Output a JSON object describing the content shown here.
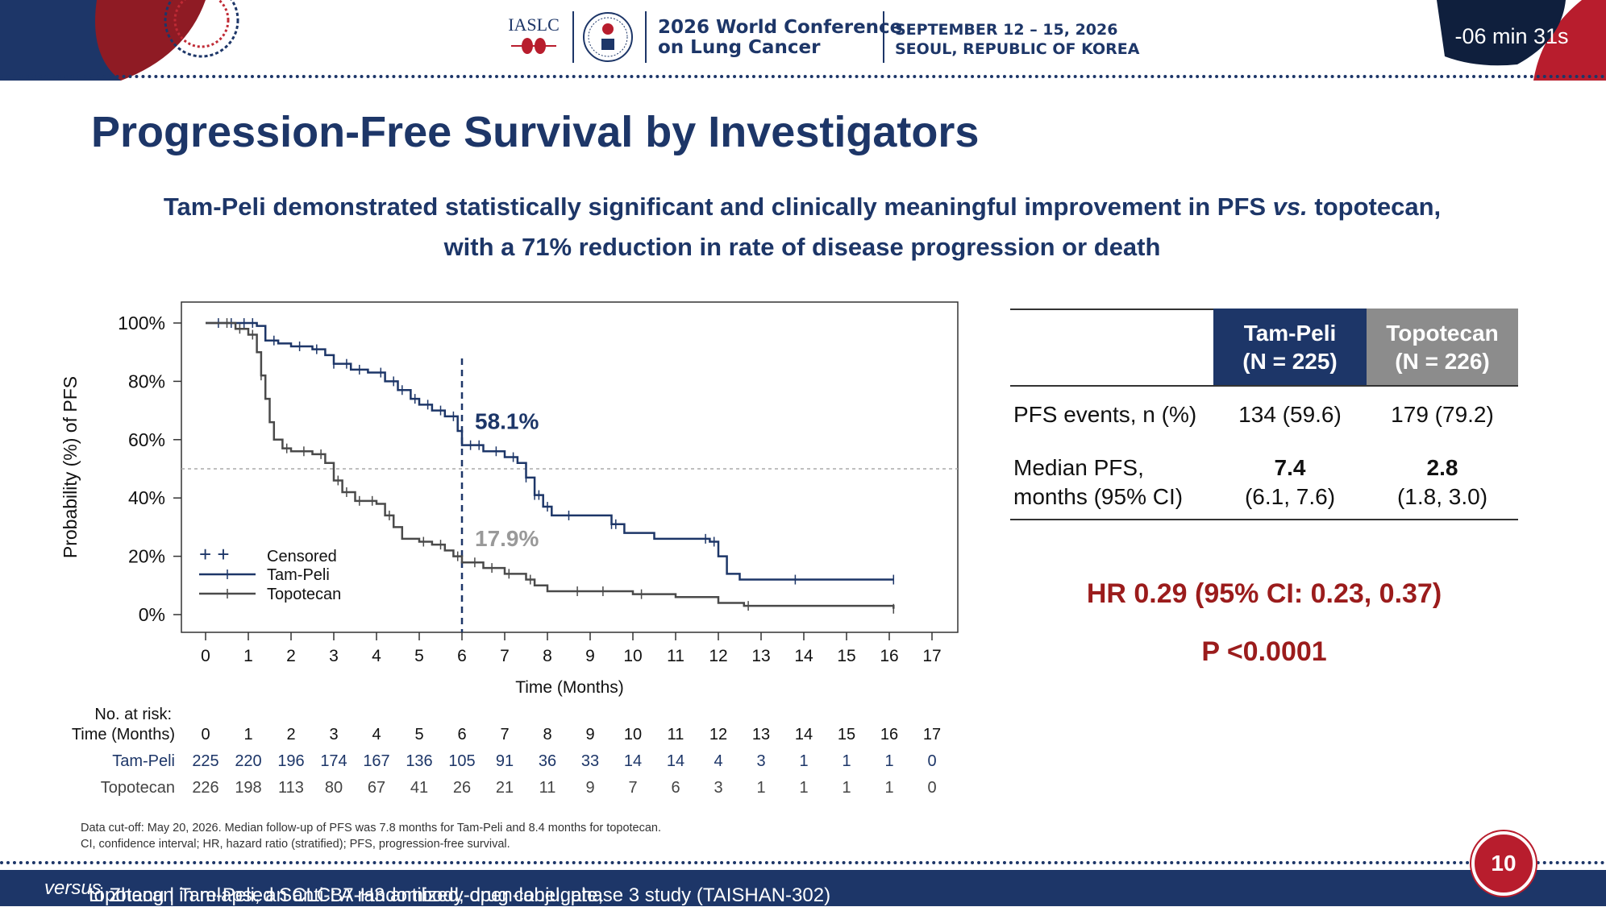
{
  "header": {
    "iaslc_logo": "IASLC",
    "conference_line1": "2026 World Conference",
    "conference_line2": "on Lung Cancer",
    "dates_line1": "SEPTEMBER 12 – 15, 2026",
    "dates_line2": "SEOUL, REPUBLIC OF KOREA",
    "timer": "-06 min 31s",
    "brand_navy": "#1d3668",
    "brand_red": "#b81d2d"
  },
  "slide": {
    "title": "Progression-Free Survival by Investigators",
    "subtitle_line1_pre": "Tam-Peli demonstrated statistically significant and clinically meaningful improvement in PFS ",
    "subtitle_line1_vs": "vs.",
    "subtitle_line1_post": " topotecan,",
    "subtitle_line2": "with a 71% reduction in rate of disease progression or death",
    "page_number": "10"
  },
  "chart_data": {
    "type": "line",
    "ylabel": "Probability (%) of PFS",
    "xlabel": "Time (Months)",
    "xlim": [
      0,
      17
    ],
    "ylim": [
      0,
      100
    ],
    "x_ticks": [
      "0",
      "1",
      "2",
      "3",
      "4",
      "5",
      "6",
      "7",
      "8",
      "9",
      "10",
      "11",
      "12",
      "13",
      "14",
      "15",
      "16",
      "17"
    ],
    "y_ticks": [
      "0%",
      "20%",
      "40%",
      "60%",
      "80%",
      "100%"
    ],
    "reference_lines": {
      "vertical_x": 6,
      "horizontal_y": 50
    },
    "legend": {
      "position": "bottom-left",
      "censored_label": "Censored"
    },
    "series": [
      {
        "name": "Tam-Peli",
        "color": "#1d3668",
        "annotation": "58.1%",
        "annotation_x": 6,
        "points": [
          [
            0,
            100
          ],
          [
            0.5,
            100
          ],
          [
            1.2,
            99
          ],
          [
            1.4,
            94
          ],
          [
            1.7,
            93
          ],
          [
            2.0,
            92
          ],
          [
            2.5,
            91
          ],
          [
            2.8,
            89
          ],
          [
            3.0,
            86
          ],
          [
            3.4,
            84
          ],
          [
            3.8,
            83
          ],
          [
            4.2,
            80
          ],
          [
            4.5,
            77
          ],
          [
            4.8,
            74
          ],
          [
            5.0,
            72
          ],
          [
            5.3,
            70
          ],
          [
            5.6,
            68
          ],
          [
            5.9,
            63
          ],
          [
            6.0,
            58.1
          ],
          [
            6.5,
            56
          ],
          [
            7.0,
            54
          ],
          [
            7.3,
            52
          ],
          [
            7.5,
            47
          ],
          [
            7.7,
            41
          ],
          [
            7.9,
            37
          ],
          [
            8.1,
            34
          ],
          [
            9.0,
            34
          ],
          [
            9.5,
            31
          ],
          [
            9.8,
            28
          ],
          [
            10.5,
            26
          ],
          [
            11.0,
            26
          ],
          [
            11.8,
            25
          ],
          [
            12.0,
            20
          ],
          [
            12.2,
            14
          ],
          [
            12.5,
            12
          ],
          [
            16.1,
            12
          ]
        ]
      },
      {
        "name": "Topotecan",
        "color": "#4a4a4a",
        "annotation": "17.9%",
        "annotation_x": 6,
        "points": [
          [
            0,
            100
          ],
          [
            0.7,
            98
          ],
          [
            1.0,
            96
          ],
          [
            1.2,
            90
          ],
          [
            1.3,
            82
          ],
          [
            1.4,
            74
          ],
          [
            1.5,
            66
          ],
          [
            1.6,
            60
          ],
          [
            1.8,
            57
          ],
          [
            2.0,
            56
          ],
          [
            2.5,
            55
          ],
          [
            2.8,
            52
          ],
          [
            3.0,
            46
          ],
          [
            3.2,
            42
          ],
          [
            3.5,
            39
          ],
          [
            4.0,
            38
          ],
          [
            4.2,
            34
          ],
          [
            4.4,
            30
          ],
          [
            4.6,
            26
          ],
          [
            5.0,
            25
          ],
          [
            5.3,
            24
          ],
          [
            5.6,
            22
          ],
          [
            5.8,
            20
          ],
          [
            6.0,
            17.9
          ],
          [
            6.5,
            16
          ],
          [
            7.0,
            14
          ],
          [
            7.5,
            12
          ],
          [
            7.7,
            10
          ],
          [
            8.0,
            8
          ],
          [
            9.0,
            8
          ],
          [
            10.0,
            7
          ],
          [
            11.0,
            6
          ],
          [
            12.0,
            4
          ],
          [
            12.6,
            3
          ],
          [
            16.1,
            2
          ]
        ]
      }
    ],
    "censor_marks": {
      "Tam-Peli": [
        0.3,
        0.6,
        0.9,
        1.1,
        1.6,
        2.2,
        2.6,
        3.0,
        3.3,
        3.6,
        4.1,
        4.4,
        4.6,
        4.9,
        5.2,
        5.5,
        5.8,
        6.2,
        6.4,
        6.8,
        7.2,
        7.5,
        7.7,
        7.8,
        8.0,
        8.5,
        9.5,
        9.6,
        11.7,
        11.9,
        13.8,
        16.1
      ],
      "Topotecan": [
        0.5,
        0.8,
        1.1,
        1.3,
        1.9,
        2.3,
        2.7,
        3.1,
        3.3,
        3.6,
        3.9,
        4.3,
        5.1,
        5.5,
        5.9,
        6.3,
        6.7,
        7.1,
        7.6,
        8.7,
        9.3,
        10.2,
        12.7,
        16.1
      ]
    }
  },
  "risk_table": {
    "title": "No. at risk:",
    "header_label": "Time (Months)",
    "times": [
      "0",
      "1",
      "2",
      "3",
      "4",
      "5",
      "6",
      "7",
      "8",
      "9",
      "10",
      "11",
      "12",
      "13",
      "14",
      "15",
      "16",
      "17"
    ],
    "rows": [
      {
        "label": "Tam-Peli",
        "values": [
          "225",
          "220",
          "196",
          "174",
          "167",
          "136",
          "105",
          "91",
          "36",
          "33",
          "14",
          "14",
          "4",
          "3",
          "1",
          "1",
          "1",
          "0"
        ]
      },
      {
        "label": "Topotecan",
        "values": [
          "226",
          "198",
          "113",
          "80",
          "67",
          "41",
          "26",
          "21",
          "11",
          "9",
          "7",
          "6",
          "3",
          "1",
          "1",
          "1",
          "1",
          "0"
        ]
      }
    ]
  },
  "summary_table": {
    "col1_header_line1": "Tam-Peli",
    "col1_header_line2": "(N = 225)",
    "col2_header_line1": "Topotecan",
    "col2_header_line2": "(N = 226)",
    "row1_label": "PFS events, n (%)",
    "row1_col1": "134 (59.6)",
    "row1_col2": "179 (79.2)",
    "row2_label_line1": "Median PFS,",
    "row2_label_line2": "months (95% CI)",
    "row2_col1_median": "7.4",
    "row2_col1_ci": "(6.1, 7.6)",
    "row2_col2_median": "2.8",
    "row2_col2_ci": "(1.8, 3.0)",
    "col1_bg": "#1d3668",
    "col2_bg": "#8c8c8c"
  },
  "stats": {
    "hr": "HR 0.29 (95% CI: 0.23, 0.37)",
    "p": "P <0.0001"
  },
  "footnote": {
    "line1": "Data cut-off: May 20, 2026. Median follow-up of PFS was 7.8 months for Tam-Peli and 8.4 months for topotecan.",
    "line2": "CI, confidence interval; HR, hazard ratio (stratified); PFS, progression-free survival."
  },
  "footer": {
    "pre": "Li Zhang  |  Tam-Peli, an anti-B7-H3 antibody-drug conjugate, ",
    "versus": "versus",
    "post": " topotecan in relapsed SCLC: A randomized, open-label, phase 3 study (TAISHAN-302)"
  }
}
